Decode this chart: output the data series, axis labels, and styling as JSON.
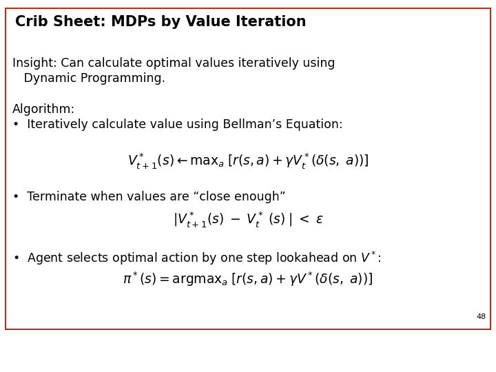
{
  "title": "Crib Sheet: MDPs by Value Iteration",
  "title_fontsize": 15,
  "box_color": "#b03020",
  "background_color": "#ffffff",
  "page_number": "48",
  "insight_line1": "Insight: Can calculate optimal values iteratively using",
  "insight_line2": "   Dynamic Programming.",
  "algorithm_label": "Algorithm:",
  "bullet1": "•  Iteratively calculate value using Bellman’s Equation:",
  "equation1": "$V^*_{t+1}(s) \\leftarrow \\mathrm{max}_a\\;[r(s,a) + \\gamma V^*_t(\\delta(s,\\; a))]$",
  "bullet2": "•  Terminate when values are “close enough”",
  "equation2": "$|V^*_{t+1}(s)\\; -\\; V^*_t\\;(s)\\;|\\;<\\;\\varepsilon$",
  "bullet3": "•  Agent selects optimal action by one step lookahead on $V^*$:",
  "equation3": "$\\pi^*(s) = \\mathrm{argmax}_a\\;[r(s,a) + \\gamma V^*(\\delta(s,\\; a))]$",
  "text_color": "#000000",
  "body_fontsize": 12.5,
  "eq_fontsize": 13.5,
  "page_num_fontsize": 8
}
